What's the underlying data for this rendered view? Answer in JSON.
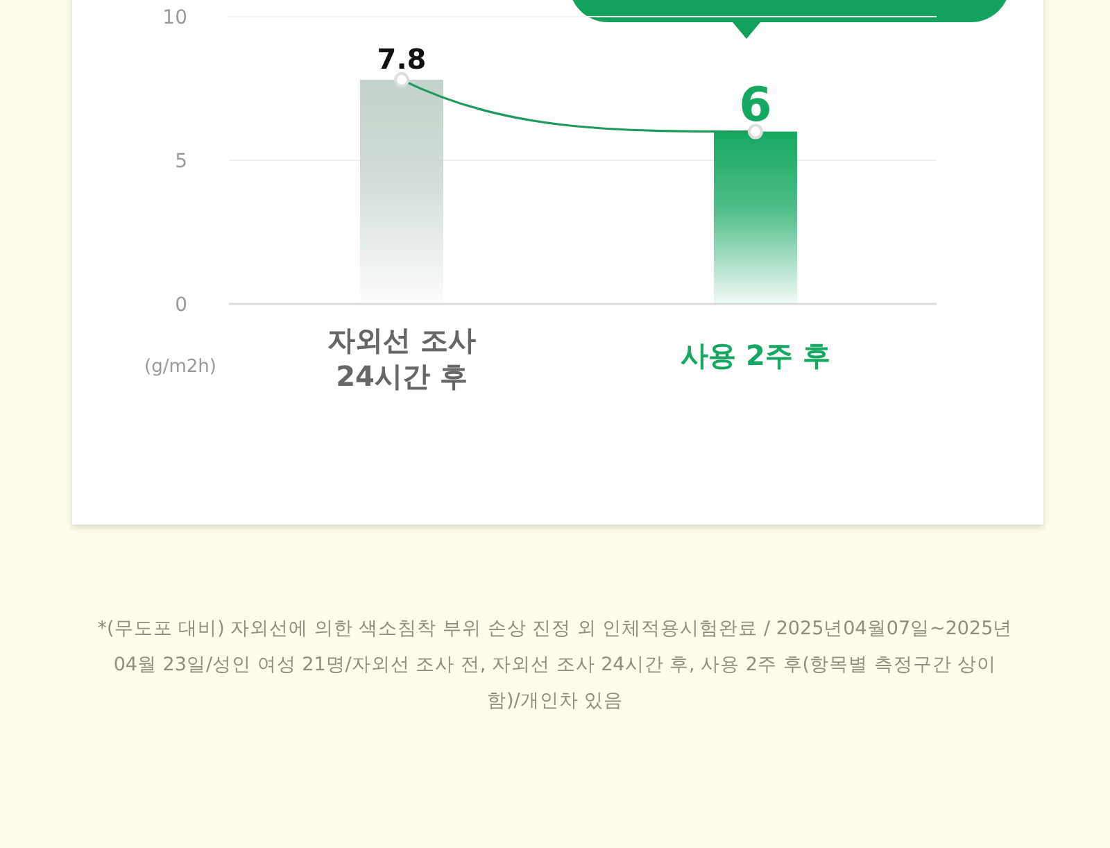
{
  "chart_data": {
    "type": "bar",
    "ylabel": "(g/m2h)",
    "categories": [
      "자외선 조사\n24시간 후",
      "사용 2주 후"
    ],
    "series": [
      {
        "colors": [
          "#c3d2ca",
          "#16a862"
        ],
        "values": [
          7.8,
          6
        ],
        "value_labels": [
          "7.8",
          "6"
        ]
      },
      {
        "type": "line",
        "color": "#1f9a5e",
        "values": [
          7.8,
          6
        ],
        "marker": "circle"
      }
    ],
    "ylim": [
      0,
      10
    ],
    "yticks": [
      0,
      5,
      10
    ],
    "grid": "y",
    "annotations": [
      "*(무도포 대비) 자외선에 의한 색소침착 부위 손상 진정 외 인체적용시험완료 / 2025년04월07일~2025년 04월 23일/성인 여성 21명/자외선 조사 전, 자외선 조사 24시간 후, 사용 2주 후(항목별 측정구간 상이함)/개인차 있음"
    ]
  }
}
